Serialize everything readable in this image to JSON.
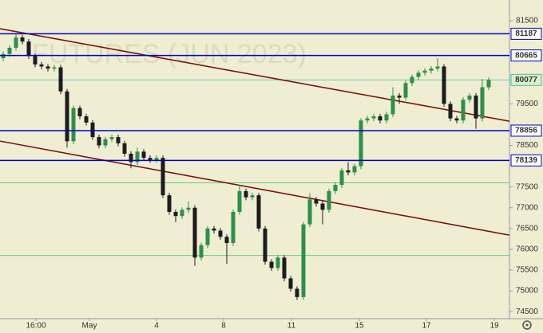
{
  "chart_data": {
    "type": "candlestick",
    "watermark": "FUTURES (JUN 2023)",
    "up_color": "#2e8f4a",
    "down_color": "#1c1c1c",
    "x": [
      1,
      3,
      5,
      7,
      9,
      11,
      13,
      15,
      17,
      19,
      21,
      23,
      25,
      27,
      29,
      31,
      33,
      35,
      37,
      39,
      41,
      43,
      45,
      47,
      49,
      51,
      53,
      55,
      57,
      59,
      61,
      63,
      65,
      67,
      69,
      71,
      73,
      75,
      77,
      79,
      81,
      83,
      85,
      87,
      89,
      91,
      93,
      95,
      97,
      99,
      101,
      103,
      105,
      107,
      109,
      111,
      113,
      115,
      117,
      119,
      121,
      123,
      125,
      127,
      129,
      131,
      133,
      135,
      137,
      139,
      141,
      143,
      145,
      147,
      149,
      151,
      153
    ],
    "open": [
      80600,
      80700,
      80850,
      81100,
      81000,
      80650,
      80450,
      80400,
      80350,
      80380,
      79800,
      78600,
      79400,
      79200,
      79050,
      78700,
      78500,
      78650,
      78700,
      78550,
      78300,
      78100,
      78350,
      78200,
      78150,
      78200,
      77300,
      76900,
      76800,
      76950,
      77000,
      75800,
      76100,
      76500,
      76450,
      76300,
      76150,
      76900,
      77400,
      77250,
      77300,
      76500,
      75700,
      75550,
      75800,
      75300,
      75050,
      74850,
      76600,
      77200,
      77100,
      76950,
      77400,
      77550,
      77900,
      77850,
      78000,
      79100,
      79150,
      79200,
      79100,
      79250,
      79700,
      79650,
      80000,
      80150,
      80250,
      80300,
      80350,
      80400,
      79500,
      79150,
      79100,
      79600,
      79700,
      79150,
      79900
    ],
    "high": [
      80760,
      80910,
      81190,
      81160,
      81060,
      80710,
      80510,
      80460,
      80440,
      80440,
      79860,
      79460,
      79460,
      79260,
      79110,
      78760,
      78710,
      78760,
      78760,
      78610,
      78360,
      78450,
      78410,
      78260,
      78260,
      78260,
      77360,
      76960,
      77010,
      77150,
      77060,
      76160,
      76560,
      76560,
      76510,
      76360,
      76960,
      77550,
      77460,
      77360,
      77360,
      76560,
      75760,
      75860,
      75860,
      75360,
      75110,
      76660,
      77350,
      77260,
      77160,
      77460,
      77610,
      77960,
      78100,
      78060,
      79160,
      79210,
      79260,
      79260,
      79310,
      79900,
      79760,
      80060,
      80210,
      80310,
      80360,
      80410,
      80600,
      80460,
      79560,
      79210,
      79660,
      79760,
      79760,
      80100,
      80137
    ],
    "low": [
      80530,
      80630,
      80780,
      80930,
      80580,
      80380,
      80330,
      80280,
      80280,
      79730,
      78450,
      78530,
      79130,
      78980,
      78630,
      78430,
      78430,
      78580,
      78480,
      78230,
      77950,
      78030,
      78130,
      78080,
      78080,
      77230,
      76830,
      76650,
      76730,
      76880,
      75600,
      75730,
      76030,
      76380,
      76230,
      75650,
      76080,
      76830,
      77180,
      77180,
      76430,
      75630,
      75480,
      75480,
      75230,
      74980,
      74780,
      74780,
      76530,
      77030,
      76600,
      76880,
      77330,
      77480,
      77780,
      77780,
      77930,
      79030,
      79080,
      79030,
      79030,
      79180,
      79500,
      79580,
      79930,
      80080,
      80180,
      80230,
      80280,
      79430,
      79080,
      79030,
      79030,
      79530,
      78900,
      79080,
      79830
    ],
    "close": [
      80700,
      80850,
      81100,
      81000,
      80650,
      80450,
      80400,
      80350,
      80380,
      79800,
      78600,
      79400,
      79200,
      79050,
      78700,
      78500,
      78650,
      78700,
      78550,
      78300,
      78100,
      78350,
      78200,
      78150,
      78200,
      77300,
      76900,
      76800,
      76950,
      77000,
      75800,
      76100,
      76500,
      76450,
      76300,
      76150,
      76900,
      77400,
      77250,
      77300,
      76500,
      75700,
      75550,
      75800,
      75300,
      75050,
      74850,
      76600,
      77200,
      77100,
      76950,
      77400,
      77550,
      77900,
      77850,
      78000,
      79100,
      79150,
      79200,
      79100,
      79250,
      79700,
      79650,
      80000,
      80150,
      80250,
      80300,
      80350,
      80400,
      79500,
      79150,
      79100,
      79600,
      79700,
      79150,
      79900,
      80077
    ],
    "xlim": [
      0,
      160
    ],
    "ylim": [
      74330,
      82000
    ],
    "yticks": [
      81500,
      79500,
      78500,
      77500,
      77000,
      76500,
      76000,
      75500,
      75000,
      74500
    ],
    "xticks": [
      {
        "value": 11.25,
        "label": "16:00"
      },
      {
        "value": 28,
        "label": "May"
      },
      {
        "value": 49,
        "label": "4"
      },
      {
        "value": 70,
        "label": "8"
      },
      {
        "value": 91.25,
        "label": "11"
      },
      {
        "value": 112.5,
        "label": "15"
      },
      {
        "value": 133.5,
        "label": "17"
      },
      {
        "value": 154.75,
        "label": "19"
      }
    ],
    "levels": [
      81187,
      80665,
      78856,
      78139
    ],
    "level_color": "#0000d0",
    "support_lines": [
      77600,
      75850
    ],
    "support_color": "#3fbf5f",
    "current_price": 80077,
    "current_color": "#4fb8a8",
    "trend_lines": [
      {
        "x": [
          0,
          159.5
        ],
        "y": [
          81308,
          79083
        ]
      },
      {
        "x": [
          0,
          159.5
        ],
        "y": [
          78604,
          76341
        ]
      }
    ],
    "trend_color": "#7a1414"
  }
}
